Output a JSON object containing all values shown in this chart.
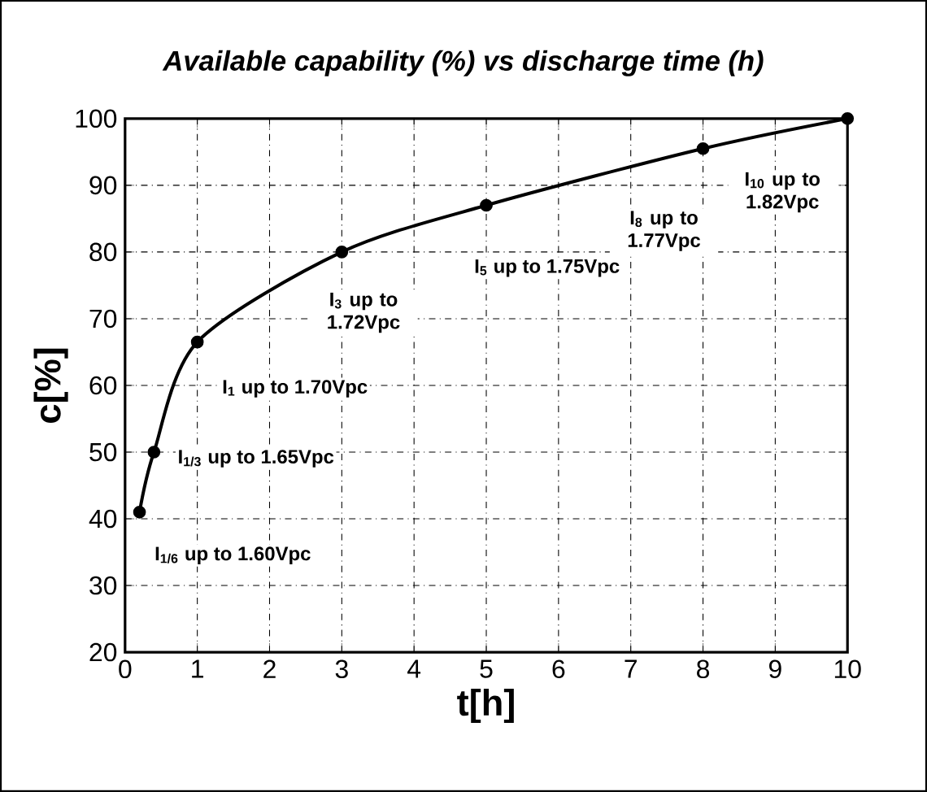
{
  "chart_data": {
    "type": "line",
    "title": "Available capability (%) vs discharge time (h)",
    "xlabel": "t[h]",
    "ylabel": "c[%]",
    "x": [
      0.2,
      0.4,
      1,
      3,
      5,
      8,
      10
    ],
    "series": [
      {
        "color": "#000000",
        "values": [
          41,
          50,
          66.5,
          80,
          87,
          95.5,
          100
        ]
      }
    ],
    "xlim": [
      0,
      10
    ],
    "ylim": [
      20,
      100
    ],
    "xticks": [
      0,
      1,
      2,
      3,
      4,
      5,
      6,
      7,
      8,
      9,
      10
    ],
    "yticks": [
      20,
      30,
      40,
      50,
      60,
      70,
      80,
      90,
      100
    ],
    "grid": true,
    "marker": "circle",
    "line_style": "solid",
    "annotations": [
      "I$_{1/6}$ up to 1.60Vpc",
      "I$_{1/3}$ up to 1.65Vpc",
      "I$_{1}$ up to 1.70Vpc",
      "I$_{3}$ up to 1.72Vpc",
      "I$_{5}$ up to 1.75Vpc",
      "I$_{8}$ up to 1.77Vpc",
      "I$_{10}$ up to 1.82Vpc"
    ]
  }
}
